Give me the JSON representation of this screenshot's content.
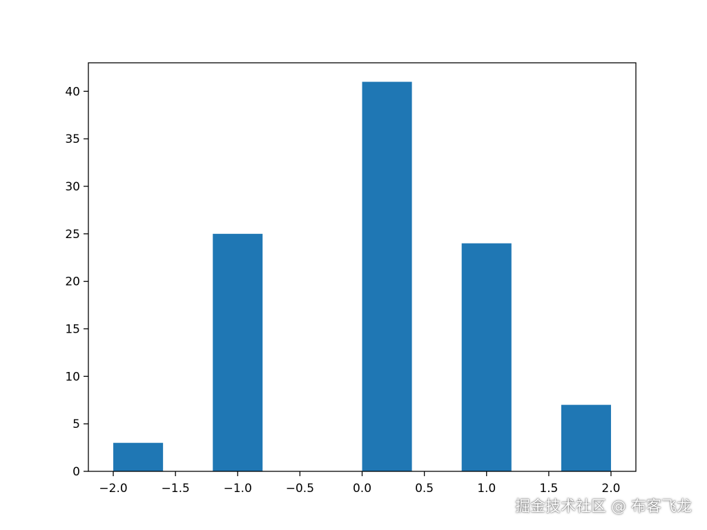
{
  "chart_data": {
    "type": "bar",
    "title": "",
    "xlabel": "",
    "ylabel": "",
    "bar_color": "#1f77b4",
    "bars": [
      {
        "x_start": -2.0,
        "x_end": -1.6,
        "value": 3
      },
      {
        "x_start": -1.2,
        "x_end": -0.8,
        "value": 25
      },
      {
        "x_start": 0.0,
        "x_end": 0.4,
        "value": 41
      },
      {
        "x_start": 0.8,
        "x_end": 1.2,
        "value": 24
      },
      {
        "x_start": 1.6,
        "x_end": 2.0,
        "value": 7
      }
    ],
    "xlim": [
      -2.2,
      2.2
    ],
    "ylim": [
      0,
      43
    ],
    "x_ticks": [
      {
        "value": -2.0,
        "label": "−2.0"
      },
      {
        "value": -1.5,
        "label": "−1.5"
      },
      {
        "value": -1.0,
        "label": "−1.0"
      },
      {
        "value": -0.5,
        "label": "−0.5"
      },
      {
        "value": 0.0,
        "label": "0.0"
      },
      {
        "value": 0.5,
        "label": "0.5"
      },
      {
        "value": 1.0,
        "label": "1.0"
      },
      {
        "value": 1.5,
        "label": "1.5"
      },
      {
        "value": 2.0,
        "label": "2.0"
      }
    ],
    "y_ticks": [
      {
        "value": 0,
        "label": "0"
      },
      {
        "value": 5,
        "label": "5"
      },
      {
        "value": 10,
        "label": "10"
      },
      {
        "value": 15,
        "label": "15"
      },
      {
        "value": 20,
        "label": "20"
      },
      {
        "value": 25,
        "label": "25"
      },
      {
        "value": 30,
        "label": "30"
      },
      {
        "value": 35,
        "label": "35"
      },
      {
        "value": 40,
        "label": "40"
      }
    ],
    "grid": false,
    "legend": "none"
  },
  "watermark": "掘金技术社区 @ 布客飞龙"
}
